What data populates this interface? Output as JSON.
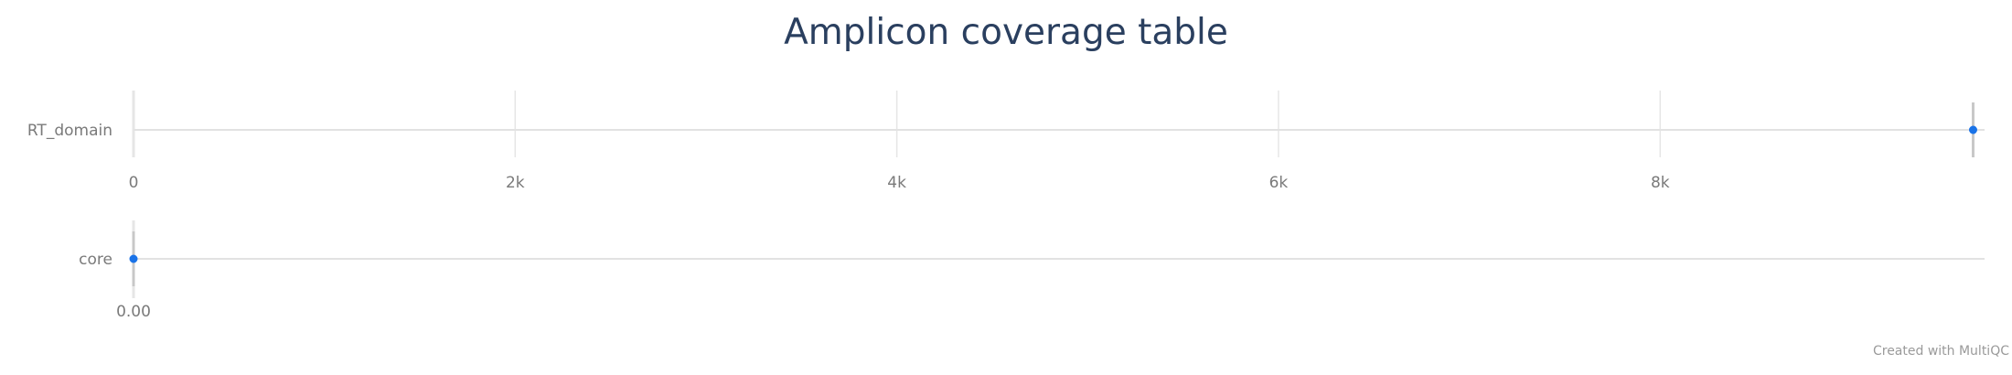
{
  "chart_data": {
    "type": "scatter",
    "title": "Amplicon coverage table",
    "credit": "Created with MultiQC",
    "colors": {
      "title": "#2a3f5f",
      "point": "#1a73e8",
      "strip": "#c8c8c8",
      "axis_line": "#e2e2e2",
      "grid": "#e6e6e6",
      "label": "#7a7a7a"
    },
    "grid": true,
    "panels": [
      {
        "category": "RT_domain",
        "xlim": [
          0,
          9700
        ],
        "ticks": [
          0,
          2000,
          4000,
          6000,
          8000
        ],
        "tick_labels": [
          "0",
          "2k",
          "4k",
          "6k",
          "8k"
        ],
        "values": [
          9640
        ]
      },
      {
        "category": "core",
        "xlim": [
          0,
          1
        ],
        "ticks": [
          0
        ],
        "tick_labels": [
          "0.00"
        ],
        "values": [
          0
        ]
      }
    ]
  }
}
